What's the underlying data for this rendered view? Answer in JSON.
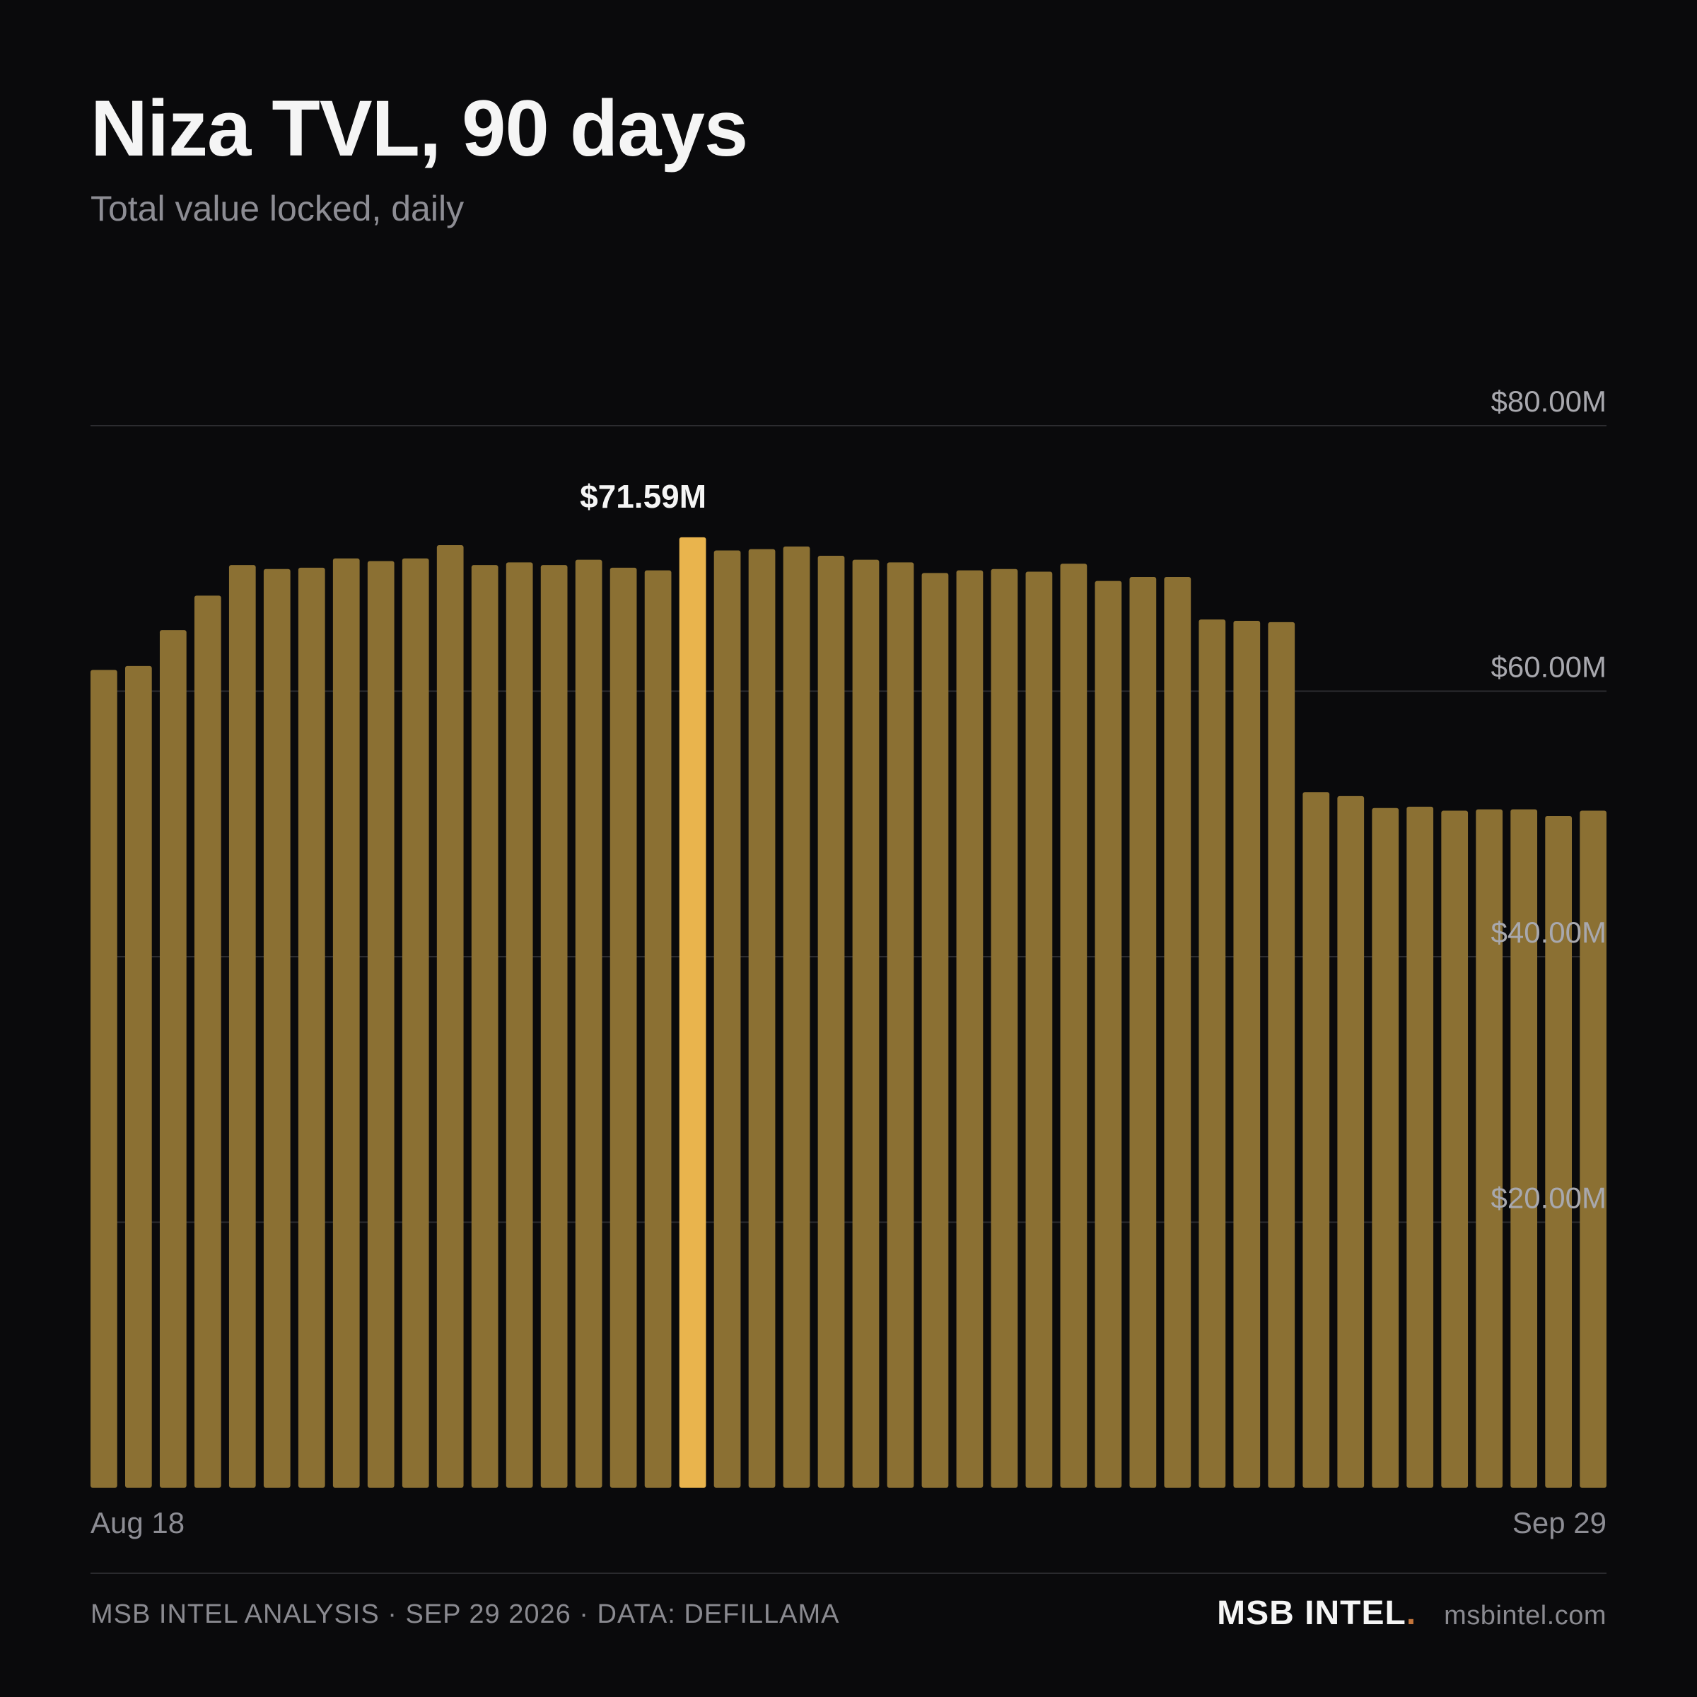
{
  "header": {
    "title": "Niza TVL, 90 days",
    "subtitle": "Total value locked, daily"
  },
  "colors": {
    "background": "#0a0a0c",
    "bar": "#8b7033",
    "bar_highlight": "#e9b44d",
    "grid": "#2c2c30",
    "label": "#a8a8ae"
  },
  "chart_data": {
    "type": "bar",
    "title": "Niza TVL, 90 days",
    "subtitle": "Total value locked, daily",
    "xlabel": "",
    "ylabel": "",
    "x_start_label": "Aug 18",
    "x_end_label": "Sep 29",
    "ylim": [
      0,
      80
    ],
    "y_ticks": [
      {
        "value": 20,
        "label": "$20.00M"
      },
      {
        "value": 40,
        "label": "$40.00M"
      },
      {
        "value": 60,
        "label": "$60.00M"
      },
      {
        "value": 80,
        "label": "$80.00M"
      }
    ],
    "grid": true,
    "values": [
      61.6,
      61.9,
      64.6,
      67.2,
      69.5,
      69.2,
      69.3,
      70.0,
      69.8,
      70.0,
      71.0,
      69.5,
      69.7,
      69.5,
      69.9,
      69.3,
      69.1,
      71.59,
      70.6,
      70.7,
      70.9,
      70.2,
      69.9,
      69.7,
      68.9,
      69.1,
      69.2,
      69.0,
      69.6,
      68.3,
      68.6,
      68.6,
      65.4,
      65.3,
      65.2,
      52.4,
      52.1,
      51.2,
      51.3,
      51.0,
      51.1,
      51.1,
      50.6,
      51.0
    ],
    "highlight_index": 17,
    "highlight_label": "$71.59M"
  },
  "footer": {
    "left": "MSB INTEL ANALYSIS · SEP 29 2026 · DATA: DEFILLAMA",
    "brand": "MSB INTEL",
    "brand_dot": ".",
    "site": "msbintel.com"
  }
}
